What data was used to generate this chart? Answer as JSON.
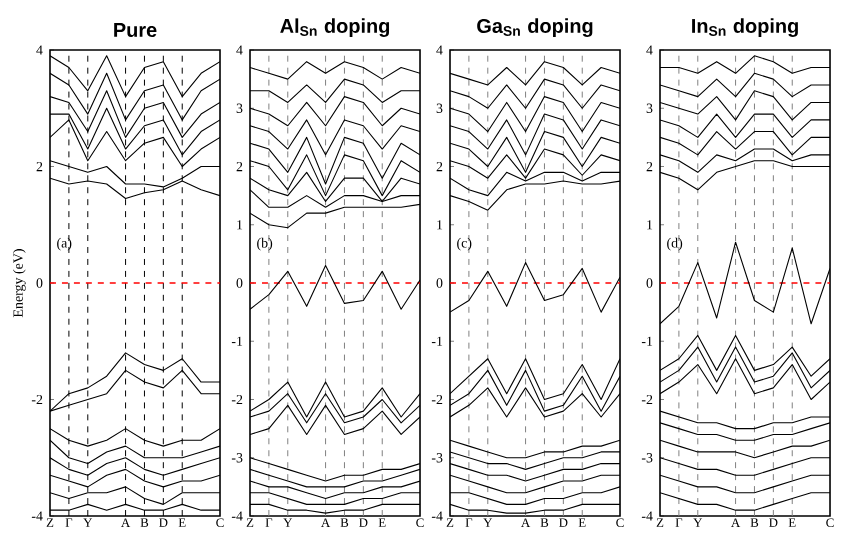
{
  "chart_data": [
    {
      "type": "line",
      "title": "Pure",
      "ylabel": "Energy (eV)",
      "annotations": [
        "(a)"
      ],
      "ylim": [
        -4,
        4
      ],
      "yticks": [
        -4,
        -2,
        0,
        2,
        4
      ],
      "categories": [
        "Z",
        "Γ",
        "Y",
        null,
        "A",
        "B",
        "D",
        "E",
        null,
        "C"
      ],
      "ref_lines": [
        {
          "axis": "x",
          "value": "Γ",
          "color": "#000000",
          "line_style": "dashed"
        },
        {
          "axis": "x",
          "value": "Y",
          "color": "#000000",
          "line_style": "dashed"
        },
        {
          "axis": "x",
          "value": "A",
          "color": "#000000",
          "line_style": "dashed"
        },
        {
          "axis": "x",
          "value": "B",
          "color": "#000000",
          "line_style": "dashed"
        },
        {
          "axis": "x",
          "value": "D",
          "color": "#000000",
          "line_style": "dashed"
        },
        {
          "axis": "x",
          "value": "E",
          "color": "#000000",
          "line_style": "dashed"
        },
        {
          "axis": "y",
          "value": 0,
          "color": "#ff0000",
          "line_style": "dashed"
        }
      ],
      "series": [
        {
          "color": "#000000",
          "values": [
            1.8,
            1.7,
            1.75,
            1.7,
            1.45,
            1.55,
            1.6,
            1.75,
            1.6,
            1.5
          ]
        },
        {
          "color": "#000000",
          "values": [
            2.1,
            2.0,
            1.9,
            2.0,
            1.7,
            1.7,
            1.65,
            1.8,
            2.0,
            2.0
          ]
        },
        {
          "color": "#000000",
          "values": [
            2.5,
            2.8,
            2.1,
            2.6,
            2.1,
            2.4,
            2.5,
            2.0,
            2.3,
            2.5
          ]
        },
        {
          "color": "#000000",
          "values": [
            2.9,
            2.9,
            2.3,
            3.0,
            2.3,
            2.7,
            2.8,
            2.2,
            2.6,
            2.8
          ]
        },
        {
          "color": "#000000",
          "values": [
            3.2,
            3.1,
            2.6,
            3.3,
            2.5,
            3.0,
            3.1,
            2.5,
            2.9,
            3.1
          ]
        },
        {
          "color": "#000000",
          "values": [
            3.6,
            3.4,
            2.9,
            3.6,
            2.8,
            3.3,
            3.4,
            2.8,
            3.3,
            3.5
          ]
        },
        {
          "color": "#000000",
          "values": [
            3.9,
            3.7,
            3.3,
            3.9,
            3.2,
            3.7,
            3.8,
            3.2,
            3.6,
            3.8
          ]
        },
        {
          "color": "#000000",
          "values": [
            -2.2,
            -1.9,
            -1.8,
            -1.6,
            -1.2,
            -1.4,
            -1.5,
            -1.3,
            -1.7,
            -1.7
          ]
        },
        {
          "color": "#000000",
          "values": [
            -2.2,
            -2.1,
            -2.0,
            -1.9,
            -1.5,
            -1.7,
            -1.8,
            -1.5,
            -1.9,
            -1.9
          ]
        },
        {
          "color": "#000000",
          "values": [
            -2.5,
            -2.7,
            -2.8,
            -2.7,
            -2.5,
            -2.7,
            -2.8,
            -2.7,
            -2.7,
            -2.5
          ]
        },
        {
          "color": "#000000",
          "values": [
            -2.7,
            -3.0,
            -3.1,
            -2.9,
            -2.8,
            -3.0,
            -3.0,
            -3.0,
            -2.9,
            -2.8
          ]
        },
        {
          "color": "#000000",
          "values": [
            -3.0,
            -3.2,
            -3.3,
            -3.1,
            -3.0,
            -3.2,
            -3.3,
            -3.2,
            -3.1,
            -3.0
          ]
        },
        {
          "color": "#000000",
          "values": [
            -3.3,
            -3.4,
            -3.5,
            -3.3,
            -3.2,
            -3.4,
            -3.5,
            -3.4,
            -3.4,
            -3.3
          ]
        },
        {
          "color": "#000000",
          "values": [
            -3.6,
            -3.7,
            -3.6,
            -3.6,
            -3.5,
            -3.7,
            -3.8,
            -3.6,
            -3.6,
            -3.6
          ]
        },
        {
          "color": "#000000",
          "values": [
            -3.9,
            -3.9,
            -3.8,
            -3.9,
            -3.8,
            -3.9,
            -3.9,
            -3.8,
            -3.9,
            -3.9
          ]
        }
      ]
    },
    {
      "type": "line",
      "title": "Al$_{Sn}$ doping",
      "annotations": [
        "(b)"
      ],
      "ylim": [
        -4,
        4
      ],
      "yticks": [
        -4,
        -3,
        -2,
        -1,
        0,
        1,
        2,
        3,
        4
      ],
      "categories": [
        "Z",
        "Γ",
        "Y",
        null,
        "A",
        "B",
        "D",
        "E",
        null,
        "C"
      ],
      "ref_lines": [
        {
          "axis": "x",
          "value": "Γ",
          "color": "#808080",
          "line_style": "dashed"
        },
        {
          "axis": "x",
          "value": "Y",
          "color": "#808080",
          "line_style": "dashed"
        },
        {
          "axis": "x",
          "value": "A",
          "color": "#808080",
          "line_style": "dashed"
        },
        {
          "axis": "x",
          "value": "B",
          "color": "#808080",
          "line_style": "dashed"
        },
        {
          "axis": "x",
          "value": "D",
          "color": "#808080",
          "line_style": "dashed"
        },
        {
          "axis": "x",
          "value": "E",
          "color": "#808080",
          "line_style": "dashed"
        },
        {
          "axis": "y",
          "value": 0,
          "color": "#ff0000",
          "line_style": "dashed"
        }
      ],
      "series": [
        {
          "color": "#000000",
          "values": [
            -0.45,
            -0.2,
            0.2,
            -0.4,
            0.3,
            -0.35,
            -0.3,
            0.2,
            -0.45,
            0.05
          ]
        },
        {
          "color": "#000000",
          "values": [
            -2.2,
            -2.0,
            -1.7,
            -2.3,
            -1.7,
            -2.3,
            -2.2,
            -1.8,
            -2.3,
            -1.9
          ]
        },
        {
          "color": "#000000",
          "values": [
            -2.3,
            -2.2,
            -1.9,
            -2.4,
            -1.9,
            -2.4,
            -2.3,
            -2.0,
            -2.4,
            -2.1
          ]
        },
        {
          "color": "#000000",
          "values": [
            -2.6,
            -2.5,
            -2.1,
            -2.6,
            -2.1,
            -2.6,
            -2.5,
            -2.2,
            -2.6,
            -2.3
          ]
        },
        {
          "color": "#000000",
          "values": [
            -3.0,
            -3.1,
            -3.2,
            -3.3,
            -3.4,
            -3.3,
            -3.3,
            -3.2,
            -3.2,
            -3.1
          ]
        },
        {
          "color": "#000000",
          "values": [
            -3.2,
            -3.3,
            -3.4,
            -3.5,
            -3.5,
            -3.5,
            -3.4,
            -3.4,
            -3.3,
            -3.2
          ]
        },
        {
          "color": "#000000",
          "values": [
            -3.4,
            -3.5,
            -3.5,
            -3.6,
            -3.7,
            -3.6,
            -3.6,
            -3.5,
            -3.5,
            -3.4
          ]
        },
        {
          "color": "#000000",
          "values": [
            -3.6,
            -3.6,
            -3.7,
            -3.8,
            -3.8,
            -3.8,
            -3.7,
            -3.7,
            -3.6,
            -3.6
          ]
        },
        {
          "color": "#000000",
          "values": [
            -3.8,
            -3.8,
            -3.9,
            -3.9,
            -3.95,
            -3.9,
            -3.9,
            -3.8,
            -3.8,
            -3.8
          ]
        },
        {
          "color": "#000000",
          "values": [
            1.2,
            1.0,
            0.95,
            1.2,
            1.2,
            1.3,
            1.3,
            1.3,
            1.3,
            1.35
          ]
        },
        {
          "color": "#000000",
          "values": [
            1.6,
            1.3,
            1.3,
            1.5,
            1.3,
            1.5,
            1.5,
            1.4,
            1.5,
            1.5
          ]
        },
        {
          "color": "#000000",
          "values": [
            1.8,
            1.6,
            1.5,
            1.9,
            1.4,
            1.8,
            1.8,
            1.4,
            1.8,
            1.7
          ]
        },
        {
          "color": "#000000",
          "values": [
            2.1,
            2.0,
            1.6,
            2.2,
            1.5,
            2.2,
            2.1,
            1.5,
            2.1,
            1.9
          ]
        },
        {
          "color": "#000000",
          "values": [
            2.4,
            2.3,
            1.9,
            2.5,
            1.7,
            2.5,
            2.4,
            1.8,
            2.4,
            2.2
          ]
        },
        {
          "color": "#000000",
          "values": [
            2.7,
            2.6,
            2.3,
            2.8,
            2.2,
            2.8,
            2.7,
            2.3,
            2.7,
            2.6
          ]
        },
        {
          "color": "#000000",
          "values": [
            3.0,
            2.9,
            2.7,
            3.1,
            2.7,
            3.2,
            3.1,
            2.7,
            3.0,
            2.9
          ]
        },
        {
          "color": "#000000",
          "values": [
            3.3,
            3.3,
            3.1,
            3.4,
            3.1,
            3.5,
            3.4,
            3.1,
            3.3,
            3.3
          ]
        },
        {
          "color": "#000000",
          "values": [
            3.7,
            3.6,
            3.5,
            3.8,
            3.6,
            3.8,
            3.7,
            3.5,
            3.7,
            3.6
          ]
        }
      ]
    },
    {
      "type": "line",
      "title": "Ga$_{Sn}$ doping",
      "annotations": [
        "(c)"
      ],
      "ylim": [
        -4,
        4
      ],
      "yticks": [
        -4,
        -3,
        -2,
        -1,
        0,
        1,
        2,
        3,
        4
      ],
      "categories": [
        "Z",
        "Γ",
        "Y",
        null,
        "A",
        "B",
        "D",
        "E",
        null,
        "C"
      ],
      "ref_lines": [
        {
          "axis": "x",
          "value": "Γ",
          "color": "#808080",
          "line_style": "dashed"
        },
        {
          "axis": "x",
          "value": "Y",
          "color": "#808080",
          "line_style": "dashed"
        },
        {
          "axis": "x",
          "value": "A",
          "color": "#808080",
          "line_style": "dashed"
        },
        {
          "axis": "x",
          "value": "B",
          "color": "#808080",
          "line_style": "dashed"
        },
        {
          "axis": "x",
          "value": "D",
          "color": "#808080",
          "line_style": "dashed"
        },
        {
          "axis": "x",
          "value": "E",
          "color": "#808080",
          "line_style": "dashed"
        },
        {
          "axis": "y",
          "value": 0,
          "color": "#ff0000",
          "line_style": "dashed"
        }
      ],
      "series": [
        {
          "color": "#000000",
          "values": [
            -0.5,
            -0.3,
            0.2,
            -0.4,
            0.35,
            -0.3,
            -0.2,
            0.25,
            -0.5,
            0.1
          ]
        },
        {
          "color": "#000000",
          "values": [
            -1.9,
            -1.6,
            -1.3,
            -1.9,
            -1.3,
            -2.0,
            -1.9,
            -1.4,
            -2.0,
            -1.3
          ]
        },
        {
          "color": "#000000",
          "values": [
            -2.1,
            -1.9,
            -1.5,
            -2.1,
            -1.5,
            -2.2,
            -2.1,
            -1.6,
            -2.2,
            -1.6
          ]
        },
        {
          "color": "#000000",
          "values": [
            -2.3,
            -2.1,
            -1.8,
            -2.3,
            -1.8,
            -2.3,
            -2.2,
            -1.9,
            -2.3,
            -1.9
          ]
        },
        {
          "color": "#000000",
          "values": [
            -2.7,
            -2.8,
            -2.9,
            -3.0,
            -3.0,
            -2.9,
            -2.9,
            -2.8,
            -2.8,
            -2.7
          ]
        },
        {
          "color": "#000000",
          "values": [
            -2.9,
            -3.0,
            -3.1,
            -3.1,
            -3.2,
            -3.1,
            -3.0,
            -3.0,
            -2.9,
            -2.9
          ]
        },
        {
          "color": "#000000",
          "values": [
            -3.1,
            -3.2,
            -3.3,
            -3.3,
            -3.4,
            -3.3,
            -3.2,
            -3.2,
            -3.1,
            -3.1
          ]
        },
        {
          "color": "#000000",
          "values": [
            -3.3,
            -3.4,
            -3.5,
            -3.6,
            -3.6,
            -3.5,
            -3.4,
            -3.4,
            -3.3,
            -3.3
          ]
        },
        {
          "color": "#000000",
          "values": [
            -3.6,
            -3.6,
            -3.7,
            -3.8,
            -3.8,
            -3.7,
            -3.7,
            -3.6,
            -3.6,
            -3.5
          ]
        },
        {
          "color": "#000000",
          "values": [
            -3.8,
            -3.9,
            -3.9,
            -3.95,
            -3.95,
            -3.9,
            -3.9,
            -3.8,
            -3.8,
            -3.8
          ]
        },
        {
          "color": "#000000",
          "values": [
            1.5,
            1.4,
            1.25,
            1.6,
            1.7,
            1.7,
            1.75,
            1.7,
            1.7,
            1.75
          ]
        },
        {
          "color": "#000000",
          "values": [
            1.8,
            1.6,
            1.5,
            1.9,
            1.75,
            1.9,
            1.9,
            1.75,
            1.9,
            1.9
          ]
        },
        {
          "color": "#000000",
          "values": [
            2.1,
            2.0,
            1.8,
            2.2,
            1.8,
            2.3,
            2.2,
            1.85,
            2.2,
            2.1
          ]
        },
        {
          "color": "#000000",
          "values": [
            2.4,
            2.3,
            2.0,
            2.5,
            1.9,
            2.6,
            2.5,
            2.0,
            2.5,
            2.4
          ]
        },
        {
          "color": "#000000",
          "values": [
            2.7,
            2.6,
            2.3,
            2.8,
            2.2,
            2.9,
            2.8,
            2.3,
            2.8,
            2.7
          ]
        },
        {
          "color": "#000000",
          "values": [
            3.0,
            2.9,
            2.6,
            3.1,
            2.6,
            3.2,
            3.1,
            2.6,
            3.1,
            3.0
          ]
        },
        {
          "color": "#000000",
          "values": [
            3.3,
            3.2,
            3.0,
            3.4,
            3.0,
            3.5,
            3.4,
            3.0,
            3.4,
            3.3
          ]
        },
        {
          "color": "#000000",
          "values": [
            3.6,
            3.5,
            3.4,
            3.7,
            3.4,
            3.8,
            3.7,
            3.4,
            3.7,
            3.6
          ]
        }
      ]
    },
    {
      "type": "line",
      "title": "In$_{Sn}$ doping",
      "annotations": [
        "(d)"
      ],
      "ylim": [
        -4,
        4
      ],
      "yticks": [
        -4,
        -3,
        -2,
        -1,
        0,
        1,
        2,
        3,
        4
      ],
      "categories": [
        "Z",
        "Γ",
        "Y",
        null,
        "A",
        "B",
        "D",
        "E",
        null,
        "C"
      ],
      "ref_lines": [
        {
          "axis": "x",
          "value": "Γ",
          "color": "#808080",
          "line_style": "dashed"
        },
        {
          "axis": "x",
          "value": "Y",
          "color": "#808080",
          "line_style": "dashed"
        },
        {
          "axis": "x",
          "value": "A",
          "color": "#808080",
          "line_style": "dashed"
        },
        {
          "axis": "x",
          "value": "B",
          "color": "#808080",
          "line_style": "dashed"
        },
        {
          "axis": "x",
          "value": "D",
          "color": "#808080",
          "line_style": "dashed"
        },
        {
          "axis": "x",
          "value": "E",
          "color": "#808080",
          "line_style": "dashed"
        },
        {
          "axis": "y",
          "value": 0,
          "color": "#ff0000",
          "line_style": "dashed"
        }
      ],
      "series": [
        {
          "color": "#000000",
          "values": [
            -0.7,
            -0.4,
            0.35,
            -0.6,
            0.7,
            -0.3,
            -0.5,
            0.6,
            -0.7,
            0.25
          ]
        },
        {
          "color": "#000000",
          "values": [
            -1.5,
            -1.3,
            -0.9,
            -1.5,
            -0.9,
            -1.5,
            -1.4,
            -1.1,
            -1.6,
            -1.3
          ]
        },
        {
          "color": "#000000",
          "values": [
            -1.7,
            -1.5,
            -1.1,
            -1.7,
            -1.1,
            -1.7,
            -1.6,
            -1.2,
            -1.8,
            -1.5
          ]
        },
        {
          "color": "#000000",
          "values": [
            -1.9,
            -1.7,
            -1.4,
            -1.9,
            -1.3,
            -1.9,
            -1.8,
            -1.4,
            -2.0,
            -1.7
          ]
        },
        {
          "color": "#000000",
          "values": [
            -2.2,
            -2.3,
            -2.4,
            -2.4,
            -2.5,
            -2.5,
            -2.4,
            -2.4,
            -2.3,
            -2.3
          ]
        },
        {
          "color": "#000000",
          "values": [
            -2.4,
            -2.5,
            -2.6,
            -2.6,
            -2.7,
            -2.7,
            -2.6,
            -2.6,
            -2.5,
            -2.4
          ]
        },
        {
          "color": "#000000",
          "values": [
            -2.7,
            -2.8,
            -2.9,
            -2.9,
            -2.9,
            -3.0,
            -2.9,
            -2.8,
            -2.8,
            -2.7
          ]
        },
        {
          "color": "#000000",
          "values": [
            -3.0,
            -3.1,
            -3.2,
            -3.2,
            -3.3,
            -3.3,
            -3.2,
            -3.1,
            -3.0,
            -3.0
          ]
        },
        {
          "color": "#000000",
          "values": [
            -3.3,
            -3.4,
            -3.5,
            -3.5,
            -3.6,
            -3.6,
            -3.5,
            -3.4,
            -3.3,
            -3.3
          ]
        },
        {
          "color": "#000000",
          "values": [
            -3.6,
            -3.7,
            -3.8,
            -3.8,
            -3.9,
            -3.9,
            -3.8,
            -3.7,
            -3.6,
            -3.6
          ]
        },
        {
          "color": "#000000",
          "values": [
            1.9,
            1.8,
            1.6,
            1.9,
            2.0,
            2.1,
            2.1,
            2.0,
            2.0,
            2.0
          ]
        },
        {
          "color": "#000000",
          "values": [
            2.2,
            2.1,
            1.9,
            2.2,
            2.1,
            2.3,
            2.3,
            2.1,
            2.2,
            2.2
          ]
        },
        {
          "color": "#000000",
          "values": [
            2.5,
            2.4,
            2.2,
            2.6,
            2.3,
            2.6,
            2.6,
            2.2,
            2.5,
            2.5
          ]
        },
        {
          "color": "#000000",
          "values": [
            2.8,
            2.7,
            2.5,
            2.9,
            2.5,
            2.9,
            2.9,
            2.5,
            2.8,
            2.8
          ]
        },
        {
          "color": "#000000",
          "values": [
            3.1,
            3.0,
            2.9,
            3.2,
            2.8,
            3.3,
            3.2,
            2.8,
            3.1,
            3.1
          ]
        },
        {
          "color": "#000000",
          "values": [
            3.4,
            3.3,
            3.2,
            3.5,
            3.2,
            3.6,
            3.5,
            3.2,
            3.4,
            3.4
          ]
        },
        {
          "color": "#000000",
          "values": [
            3.7,
            3.7,
            3.6,
            3.8,
            3.6,
            3.9,
            3.8,
            3.6,
            3.7,
            3.7
          ]
        }
      ]
    }
  ]
}
